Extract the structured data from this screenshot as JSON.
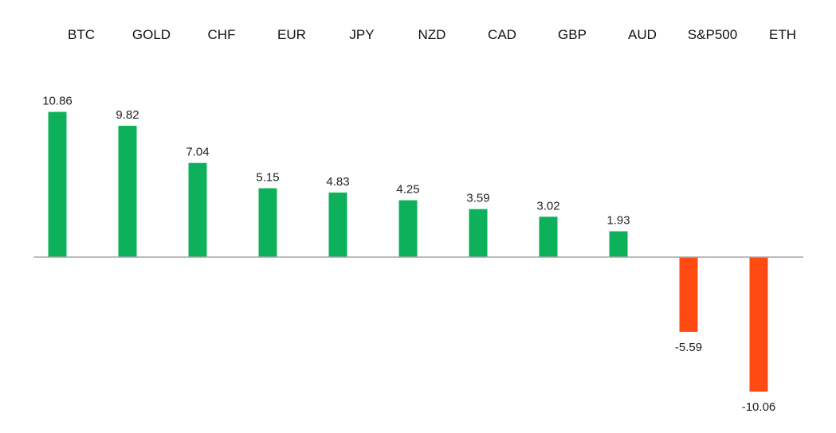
{
  "chart_data": {
    "type": "bar",
    "title": "",
    "xlabel": "",
    "ylabel": "",
    "categories": [
      "BTC",
      "GOLD",
      "CHF",
      "EUR",
      "JPY",
      "NZD",
      "CAD",
      "GBP",
      "AUD",
      "S&P500",
      "ETH"
    ],
    "values": [
      10.86,
      9.82,
      7.04,
      5.15,
      4.83,
      4.25,
      3.59,
      3.02,
      1.93,
      -5.59,
      -10.06
    ],
    "value_labels": [
      "10.86",
      "9.82",
      "7.04",
      "5.15",
      "4.83",
      "4.25",
      "3.59",
      "3.02",
      "1.93",
      "-5.59",
      "-10.06"
    ],
    "ylim": [
      -10.06,
      10.86
    ],
    "grid": false,
    "legend": "none",
    "colors": {
      "positive": "#0db15b",
      "negative": "#ff4a12",
      "axis": "#a6a6a6"
    }
  }
}
